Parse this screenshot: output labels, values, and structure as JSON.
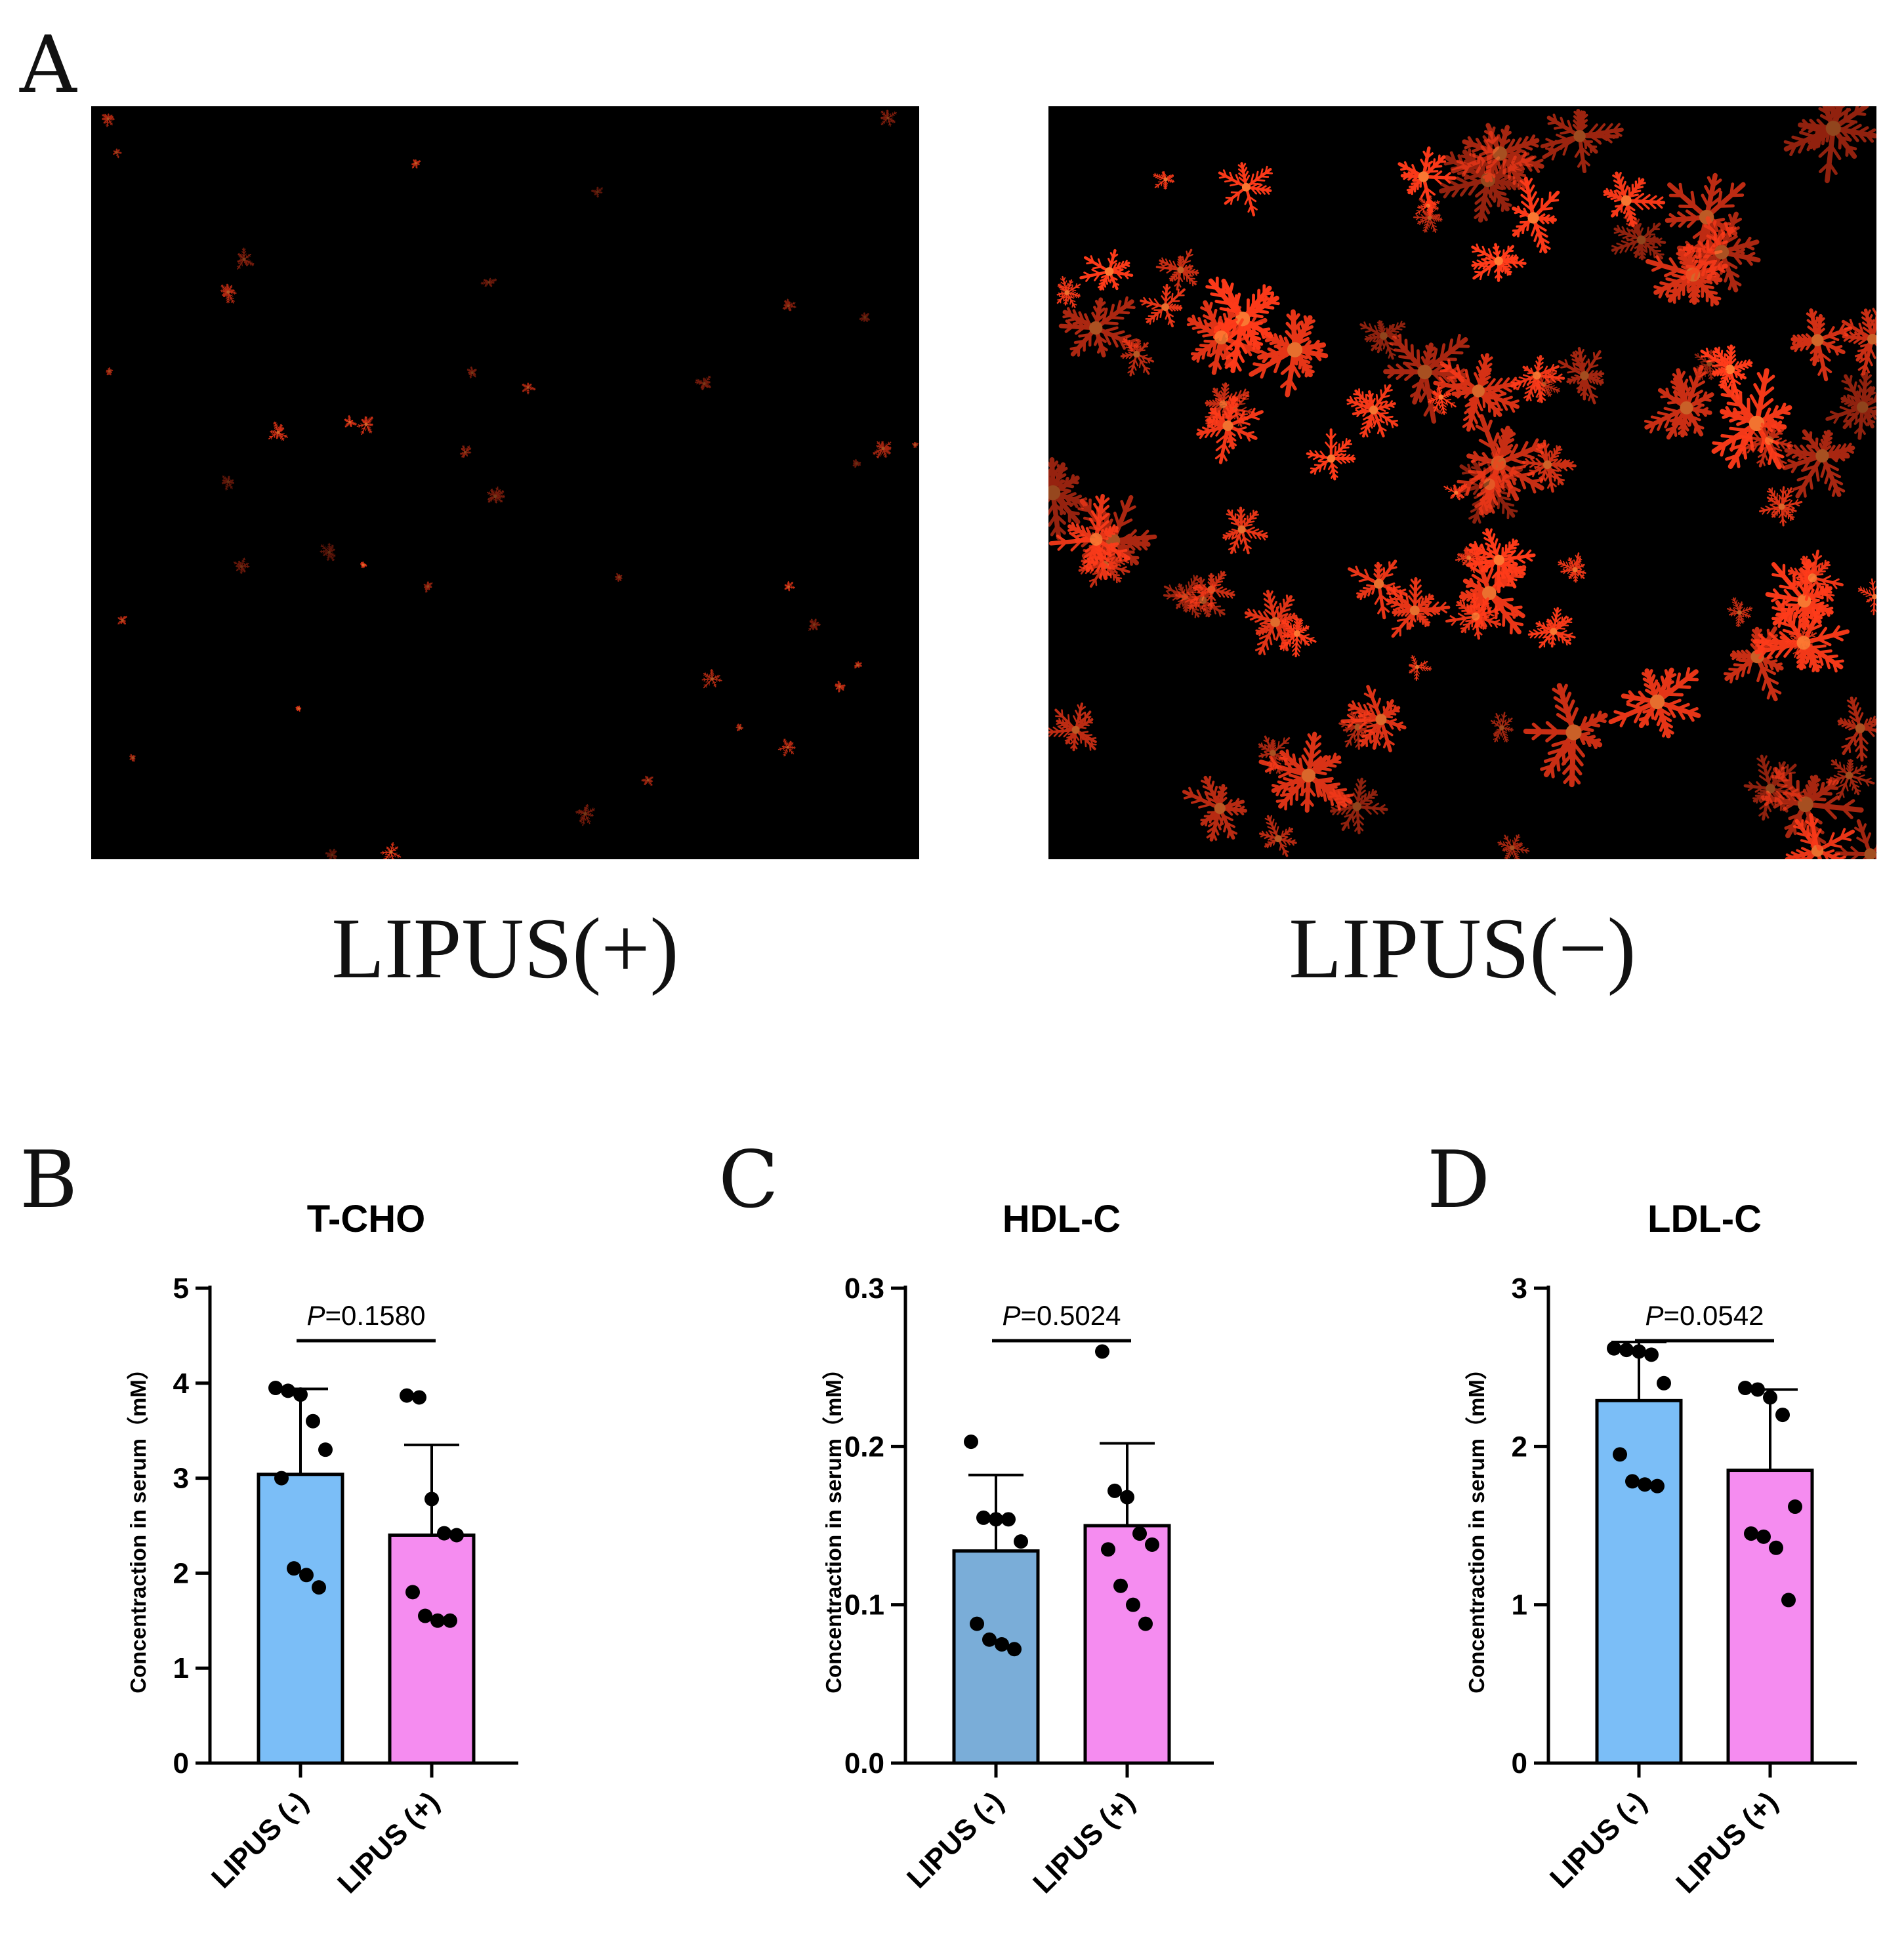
{
  "panel_a": {
    "letter": "A",
    "images": [
      {
        "label": "LIPUS(+)",
        "crystal_color": "#ff3b1a",
        "density": "sparse"
      },
      {
        "label": "LIPUS(−)",
        "crystal_color": "#ff3b1a",
        "density": "dense"
      }
    ]
  },
  "chart_data": [
    {
      "letter": "B",
      "type": "bar",
      "title": "T-CHO",
      "ylabel": "Concentraction in serum（mM）",
      "categories": [
        "LIPUS (-)",
        "LIPUS (+)"
      ],
      "values": [
        3.04,
        2.4
      ],
      "sd": [
        0.9,
        0.95
      ],
      "colors": [
        "#7bbef7",
        "#f58cf0"
      ],
      "points": [
        [
          3.95,
          3.92,
          3.88,
          3.6,
          3.3,
          3.0,
          2.05,
          1.98,
          1.85
        ],
        [
          3.87,
          3.85,
          2.78,
          2.42,
          2.4,
          1.8,
          1.55,
          1.5,
          1.5
        ]
      ],
      "ylim": [
        0,
        5
      ],
      "yticks": [
        0,
        1,
        2,
        3,
        4,
        5
      ],
      "ptext": "=0.1580",
      "p_italic": "P"
    },
    {
      "letter": "C",
      "type": "bar",
      "title": "HDL-C",
      "ylabel": "Concentraction in serum（mM）",
      "categories": [
        "LIPUS (-)",
        "LIPUS (+)"
      ],
      "values": [
        0.134,
        0.15
      ],
      "sd": [
        0.048,
        0.052
      ],
      "colors": [
        "#7aadd8",
        "#f58cf0"
      ],
      "points": [
        [
          0.203,
          0.155,
          0.154,
          0.154,
          0.14,
          0.088,
          0.078,
          0.075,
          0.072
        ],
        [
          0.26,
          0.172,
          0.168,
          0.145,
          0.138,
          0.135,
          0.112,
          0.1,
          0.088
        ]
      ],
      "ylim": [
        0,
        0.3
      ],
      "yticks": [
        0.0,
        0.1,
        0.2,
        0.3
      ],
      "ytick_labels": [
        "0.0",
        "0.1",
        "0.2",
        "0.3"
      ],
      "ptext": "=0.5024",
      "p_italic": "P"
    },
    {
      "letter": "D",
      "type": "bar",
      "title": "LDL-C",
      "ylabel": "Concentraction in serum（mM）",
      "categories": [
        "LIPUS (-)",
        "LIPUS (+)"
      ],
      "values": [
        2.29,
        1.85
      ],
      "sd": [
        0.37,
        0.51
      ],
      "colors": [
        "#7bbef7",
        "#f58cf0"
      ],
      "points": [
        [
          2.62,
          2.61,
          2.6,
          2.58,
          2.4,
          1.95,
          1.78,
          1.76,
          1.75
        ],
        [
          2.37,
          2.36,
          2.31,
          2.2,
          1.62,
          1.45,
          1.43,
          1.36,
          1.03
        ]
      ],
      "ylim": [
        0,
        3
      ],
      "yticks": [
        0,
        1,
        2,
        3
      ],
      "ptext": "=0.0542",
      "p_italic": "P"
    }
  ]
}
